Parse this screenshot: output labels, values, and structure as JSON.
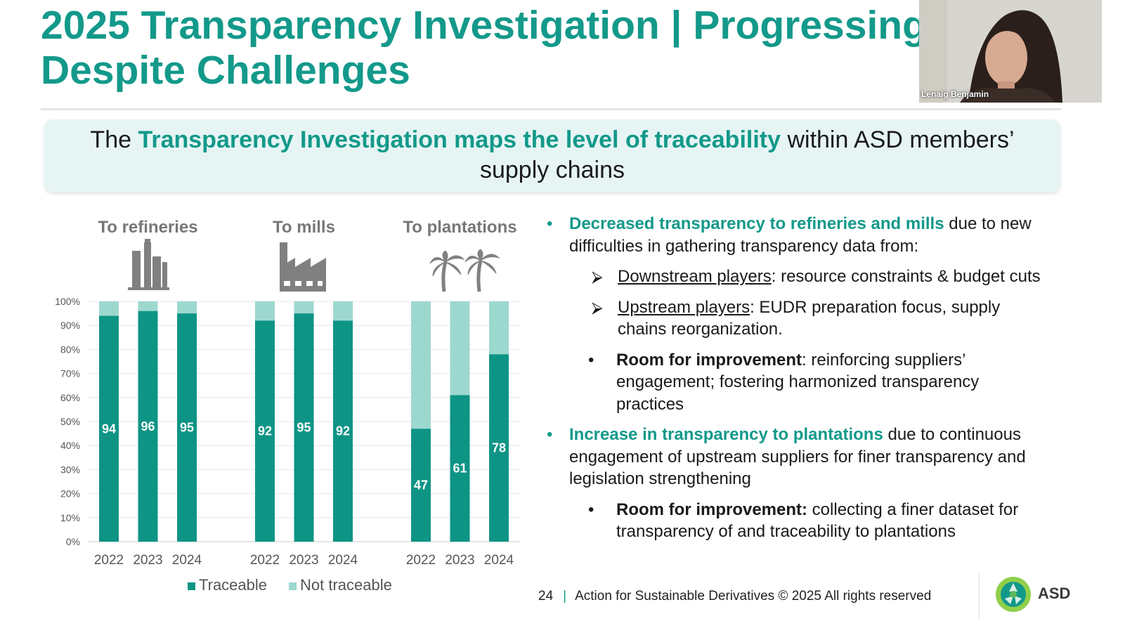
{
  "slide": {
    "title_line1": "2025 Transparency Investigation | Progressing",
    "title_line2": "Despite Challenges",
    "banner": {
      "pre": "The ",
      "highlight": "Transparency Investigation maps the level of traceability",
      "post": " within ASD members’ supply chains"
    },
    "bullets": {
      "b1_highlight": "Decreased transparency to refineries and mills",
      "b1_rest": " due to new difficulties in gathering transparency data from:",
      "sub1_label": "Downstream players",
      "sub1_rest": ": resource constraints & budget cuts",
      "sub2_label": "Upstream players",
      "sub2_rest": ": EUDR preparation focus, supply chains reorganization.",
      "room1_label": "Room for improvement",
      "room1_rest": ": reinforcing suppliers’ engagement; fostering harmonized transparency practices",
      "b2_highlight": "Increase in transparency to plantations",
      "b2_rest": " due to continuous engagement of upstream suppliers for finer transparency and legislation strengthening",
      "room2_label": "Room for improvement:",
      "room2_rest": " collecting a finer dataset for transparency of and traceability to plantations"
    },
    "footer": {
      "page_number": "24",
      "separator": "|",
      "copyright": "Action for Sustainable Derivatives © 2025 All rights reserved",
      "logo_text": "ASD"
    }
  },
  "video": {
    "participant_name": "Lenaig Benjamin"
  },
  "colors": {
    "accent": "#13998a",
    "traceable": "#0e9485",
    "not_traceable": "#9dd8cf",
    "banner_bg": "#e6f4f4",
    "icon_gray": "#808080"
  },
  "chart_data": {
    "type": "bar",
    "stacked": true,
    "groups": [
      {
        "label": "To refineries",
        "icon": "refinery-icon"
      },
      {
        "label": "To mills",
        "icon": "factory-icon"
      },
      {
        "label": "To plantations",
        "icon": "palm-trees-icon"
      }
    ],
    "categories": [
      "2022",
      "2023",
      "2024",
      "2022",
      "2023",
      "2024",
      "2022",
      "2023",
      "2024"
    ],
    "series": [
      {
        "name": "Traceable",
        "values": [
          94,
          96,
          95,
          92,
          95,
          92,
          47,
          61,
          78
        ]
      },
      {
        "name": "Not traceable",
        "values": [
          6,
          4,
          5,
          8,
          5,
          8,
          53,
          39,
          22
        ]
      }
    ],
    "data_labels": [
      "94",
      "96",
      "95",
      "92",
      "95",
      "92",
      "47",
      "61",
      "78"
    ],
    "ylim": [
      0,
      100
    ],
    "yticks": [
      "0%",
      "10%",
      "20%",
      "30%",
      "40%",
      "50%",
      "60%",
      "70%",
      "80%",
      "90%",
      "100%"
    ],
    "legend": [
      "Traceable",
      "Not traceable"
    ],
    "legend_position": "bottom",
    "grid": true
  }
}
